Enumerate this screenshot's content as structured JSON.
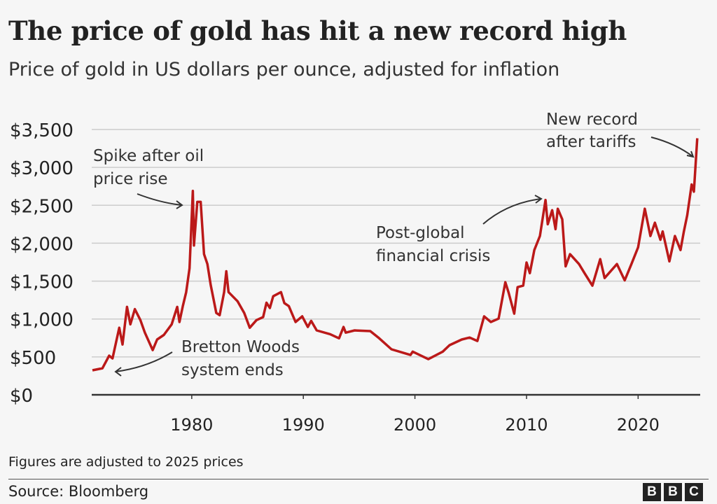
{
  "chart_data": {
    "type": "line",
    "title": "The price of gold has hit a new record high",
    "subtitle": "Price of gold in US dollars per ounce, adjusted for inflation",
    "xlabel": "",
    "ylabel": "",
    "xlim": [
      1971.1,
      2025.5
    ],
    "ylim": [
      0,
      3500
    ],
    "grid": true,
    "y_ticks": [
      "$0",
      "$500",
      "$1,000",
      "$1,500",
      "$2,000",
      "$2,500",
      "$3,000",
      "$3,500"
    ],
    "y_tick_values": [
      0,
      500,
      1000,
      1500,
      2000,
      2500,
      3000,
      3500
    ],
    "x_ticks": [
      "1980",
      "1990",
      "2000",
      "2010",
      "2020"
    ],
    "x_tick_values": [
      1980,
      1990,
      2000,
      2010,
      2020
    ],
    "line_color": "#bb1919",
    "series": [
      {
        "x": [
          1971.1,
          1972.0,
          1972.6,
          1972.9,
          1973.5,
          1973.8,
          1974.2,
          1974.5,
          1974.9,
          1975.4,
          1975.8,
          1976.5,
          1976.9,
          1977.5,
          1978.2,
          1978.7,
          1978.9,
          1979.2,
          1979.5,
          1979.8,
          1980.1,
          1980.2,
          1980.5,
          1980.8,
          1981.1,
          1981.4,
          1981.7,
          1982.2,
          1982.5,
          1982.9,
          1983.1,
          1983.3,
          1984.1,
          1984.7,
          1985.2,
          1985.8,
          1986.4,
          1986.7,
          1987.0,
          1987.3,
          1988.0,
          1988.3,
          1988.7,
          1989.3,
          1989.9,
          1990.4,
          1990.7,
          1991.2,
          1992.4,
          1993.2,
          1993.6,
          1993.8,
          1994.6,
          1996.0,
          1996.8,
          1997.9,
          1999.6,
          1999.8,
          2001.2,
          2002.5,
          2003.1,
          2004.2,
          2004.9,
          2005.6,
          2006.2,
          2006.8,
          2007.5,
          2008.1,
          2008.4,
          2008.9,
          2009.2,
          2009.7,
          2010.0,
          2010.3,
          2010.7,
          2011.2,
          2011.7,
          2011.9,
          2012.3,
          2012.6,
          2012.8,
          2013.2,
          2013.5,
          2013.9,
          2014.7,
          2015.2,
          2015.9,
          2016.6,
          2017.0,
          2018.1,
          2018.8,
          2019.4,
          2020.0,
          2020.6,
          2021.1,
          2021.5,
          2022.0,
          2022.2,
          2022.8,
          2023.3,
          2023.8,
          2024.1,
          2024.4,
          2024.8,
          2025.0,
          2025.3
        ],
        "values": [
          323,
          350,
          516,
          480,
          885,
          664,
          1160,
          930,
          1130,
          985,
          820,
          590,
          730,
          790,
          930,
          1160,
          960,
          1170,
          1355,
          1670,
          2690,
          1970,
          2545,
          2545,
          1855,
          1725,
          1450,
          1080,
          1050,
          1355,
          1630,
          1355,
          1235,
          1080,
          885,
          985,
          1025,
          1215,
          1145,
          1300,
          1355,
          1210,
          1170,
          960,
          1035,
          895,
          975,
          850,
          800,
          745,
          895,
          820,
          850,
          840,
          745,
          600,
          525,
          570,
          470,
          570,
          655,
          730,
          755,
          710,
          1035,
          960,
          1005,
          1485,
          1345,
          1070,
          1420,
          1440,
          1745,
          1605,
          1910,
          2095,
          2570,
          2250,
          2435,
          2185,
          2455,
          2315,
          1695,
          1855,
          1725,
          1605,
          1440,
          1790,
          1540,
          1725,
          1510,
          1725,
          1945,
          2455,
          2095,
          2270,
          2045,
          2155,
          1760,
          2095,
          1910,
          2155,
          2370,
          2775,
          2680,
          3385
        ]
      }
    ],
    "annotations": [
      {
        "lines": [
          "Spike after oil",
          "price rise"
        ]
      },
      {
        "lines": [
          "Bretton Woods",
          "system ends"
        ]
      },
      {
        "lines": [
          "Post-global",
          "financial crisis"
        ]
      },
      {
        "lines": [
          "New record",
          "after tariffs"
        ]
      }
    ]
  },
  "footer": {
    "note": "Figures are adjusted to 2025 prices",
    "source": "Source: Bloomberg",
    "logo": [
      "B",
      "B",
      "C"
    ]
  }
}
